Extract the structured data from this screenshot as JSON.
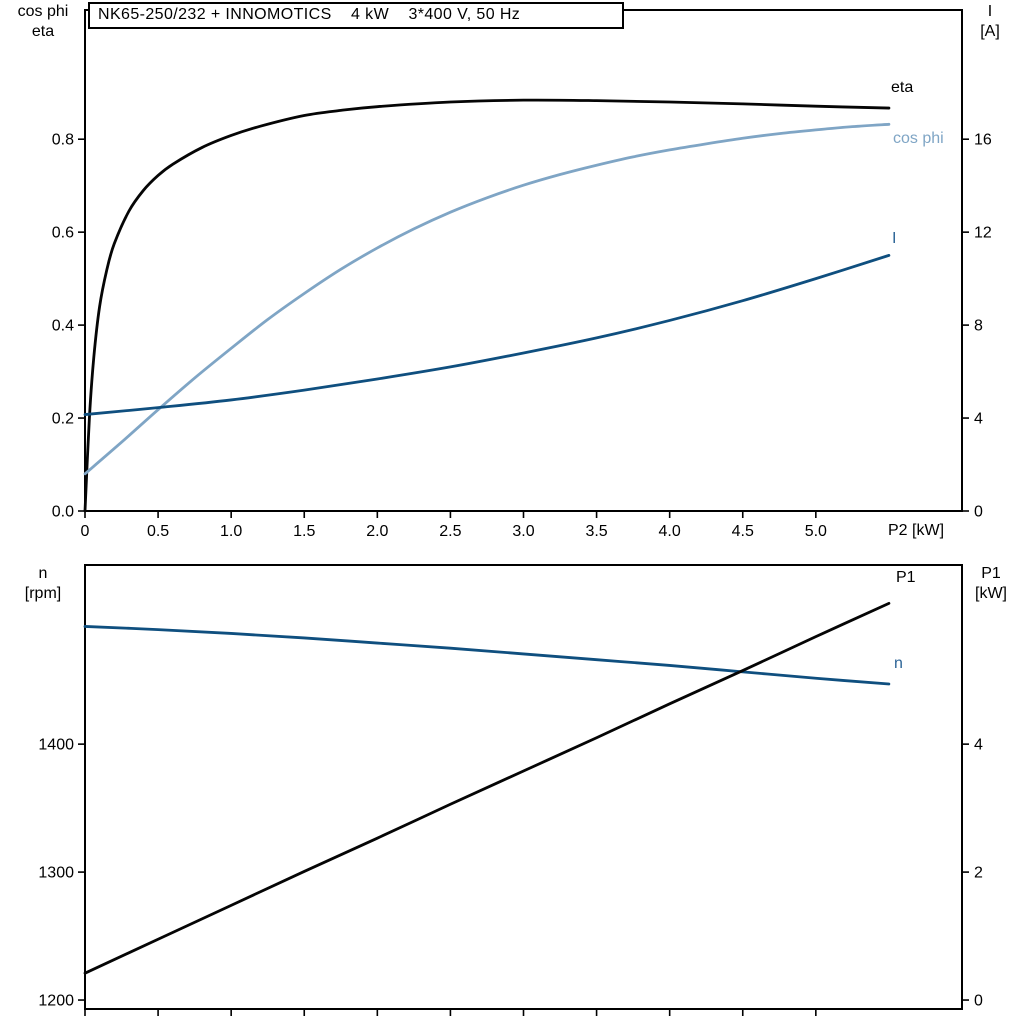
{
  "title_box": {
    "text": "NK65-250/232 + INNOMOTICS    4 kW    3*400 V, 50 Hz"
  },
  "labels": {
    "top_left_line1": "cos phi",
    "top_left_line2": "eta",
    "top_right_line1": "I",
    "top_right_line2": "[A]",
    "x_axis": "P2 [kW]",
    "bottom_left_line1": "n",
    "bottom_left_line2": "[rpm]",
    "bottom_right_line1": "P1",
    "bottom_right_line2": "[kW]",
    "curve_eta": "eta",
    "curve_cosphi": "cos phi",
    "curve_I": "I",
    "curve_P1": "P1",
    "curve_n": "n"
  },
  "colors": {
    "black_curve": "#050505",
    "light_blue": "#7fa5c5",
    "dark_blue": "#0f4f7f",
    "label_blue": "#2b6396",
    "frame": "#000000",
    "text": "#000000",
    "background": "#ffffff"
  },
  "chart_data": [
    {
      "id": "top",
      "type": "line",
      "title": "NK65-250/232 + INNOMOTICS 4 kW 3*400 V, 50 Hz",
      "xlabel": "P2 [kW]",
      "x_range": [
        0,
        6
      ],
      "x_ticks": {
        "values": [
          0,
          0.5,
          1,
          1.5,
          2,
          2.5,
          3,
          3.5,
          4,
          4.5,
          5
        ],
        "labels": [
          "0",
          "0.5",
          "1.0",
          "1.5",
          "2.0",
          "2.5",
          "3.0",
          "3.5",
          "4.0",
          "4.5",
          "5.0"
        ]
      },
      "left_axis": {
        "label": "cos phi / eta",
        "range": [
          0,
          1.078
        ],
        "tick_values": [
          0,
          0.2,
          0.4,
          0.6,
          0.8
        ],
        "tick_labels": [
          "0.0",
          "0.2",
          "0.4",
          "0.6",
          "0.8"
        ]
      },
      "right_axis": {
        "label": "I [A]",
        "range": [
          0,
          21.56
        ],
        "tick_values": [
          0,
          4,
          8,
          12,
          16
        ],
        "tick_labels": [
          "0",
          "4",
          "8",
          "12",
          "16"
        ]
      },
      "series": [
        {
          "name": "eta",
          "axis": "left",
          "color_key": "black_curve",
          "width": 2.8,
          "x": [
            0,
            0.03,
            0.06,
            0.1,
            0.15,
            0.2,
            0.3,
            0.4,
            0.5,
            0.6,
            0.8,
            1.0,
            1.2,
            1.5,
            1.75,
            2.0,
            2.5,
            3.0,
            3.5,
            4.0,
            4.5,
            5.0,
            5.5
          ],
          "y": [
            0,
            0.2,
            0.33,
            0.44,
            0.52,
            0.575,
            0.645,
            0.69,
            0.722,
            0.746,
            0.782,
            0.808,
            0.828,
            0.851,
            0.862,
            0.87,
            0.88,
            0.884,
            0.883,
            0.88,
            0.876,
            0.871,
            0.867
          ]
        },
        {
          "name": "cos phi",
          "axis": "left",
          "color_key": "light_blue",
          "width": 2.8,
          "x": [
            0,
            0.25,
            0.5,
            0.75,
            1.0,
            1.25,
            1.5,
            1.75,
            2.0,
            2.25,
            2.5,
            2.75,
            3.0,
            3.25,
            3.5,
            3.75,
            4.0,
            4.25,
            4.5,
            4.75,
            5.0,
            5.25,
            5.5
          ],
          "y": [
            0.08,
            0.148,
            0.218,
            0.286,
            0.35,
            0.412,
            0.468,
            0.52,
            0.566,
            0.607,
            0.643,
            0.674,
            0.701,
            0.724,
            0.744,
            0.762,
            0.777,
            0.79,
            0.802,
            0.812,
            0.82,
            0.827,
            0.832
          ]
        },
        {
          "name": "I",
          "axis": "right",
          "color_key": "dark_blue",
          "width": 2.8,
          "x": [
            0,
            0.5,
            1.0,
            1.5,
            2.0,
            2.5,
            3.0,
            3.5,
            4.0,
            4.5,
            5.0,
            5.5
          ],
          "y": [
            4.15,
            4.45,
            4.78,
            5.2,
            5.68,
            6.2,
            6.8,
            7.45,
            8.2,
            9.05,
            10.0,
            11.0
          ]
        }
      ]
    },
    {
      "id": "bottom",
      "type": "line",
      "title": "",
      "xlabel": "",
      "x_range": [
        0,
        6
      ],
      "x_ticks": {
        "values": [
          0,
          0.5,
          1,
          1.5,
          2,
          2.5,
          3,
          3.5,
          4,
          4.5,
          5
        ],
        "labels": null
      },
      "left_axis": {
        "label": "n [rpm]",
        "range": [
          1193,
          1540
        ],
        "tick_values": [
          1200,
          1300,
          1400
        ],
        "tick_labels": [
          "1200",
          "1300",
          "1400"
        ]
      },
      "right_axis": {
        "label": "P1 [kW]",
        "range": [
          -0.14,
          6.8
        ],
        "tick_values": [
          0,
          2,
          4
        ],
        "tick_labels": [
          "0",
          "2",
          "4"
        ]
      },
      "series": [
        {
          "name": "n",
          "axis": "left",
          "color_key": "dark_blue",
          "width": 2.8,
          "x": [
            0,
            0.5,
            1,
            1.5,
            2,
            2.5,
            3,
            3.5,
            4,
            4.5,
            5,
            5.5
          ],
          "y": [
            1492,
            1489.5,
            1486.5,
            1483,
            1479,
            1475,
            1470.5,
            1466,
            1461.5,
            1456.5,
            1451.5,
            1447
          ]
        },
        {
          "name": "P1",
          "axis": "right",
          "color_key": "black_curve",
          "width": 2.8,
          "x": [
            0,
            0.5,
            1,
            1.5,
            2,
            2.5,
            3,
            3.5,
            4,
            4.5,
            5,
            5.5
          ],
          "y": [
            0.42,
            0.95,
            1.48,
            2.01,
            2.53,
            3.06,
            3.58,
            4.1,
            4.63,
            5.15,
            5.68,
            6.2
          ]
        }
      ]
    }
  ]
}
